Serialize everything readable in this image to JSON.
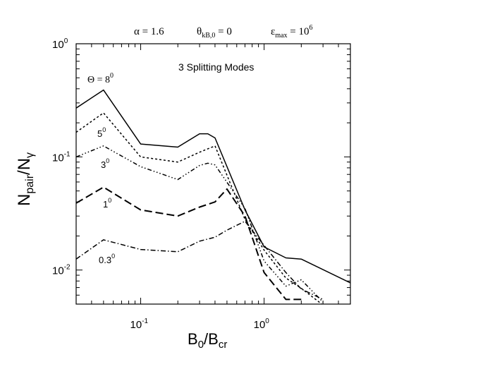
{
  "chart_data": {
    "type": "line",
    "title_parts": [
      {
        "text": "α = 1.6"
      },
      {
        "base": "θ",
        "sub": "kB,0",
        "rest": " = 0"
      },
      {
        "base": "ε",
        "sub": "max",
        "rest": " = 10",
        "sup": "6"
      }
    ],
    "annotation": "3 Splitting Modes",
    "xlabel": {
      "base": "B",
      "sub1": "0",
      "mid": "/B",
      "sub2": "cr"
    },
    "ylabel": {
      "base": "N",
      "sub1": "pair",
      "mid": "/N",
      "sub2": "γ"
    },
    "x_scale": "log",
    "y_scale": "log",
    "xlim": [
      0.03,
      5
    ],
    "ylim": [
      0.005,
      1
    ],
    "x_ticks": [
      {
        "base": "10",
        "exp": "-1",
        "value": 0.1
      },
      {
        "base": "10",
        "exp": "0",
        "value": 1
      }
    ],
    "y_ticks": [
      {
        "base": "10",
        "exp": "0",
        "value": 1
      },
      {
        "base": "10",
        "exp": "-1",
        "value": 0.1
      },
      {
        "base": "10",
        "exp": "-2",
        "value": 0.01
      }
    ],
    "grid": false,
    "series": [
      {
        "name": "8",
        "label_prefix": "Θ = ",
        "label_sup": "0",
        "dash": "",
        "x": [
          0.03,
          0.05,
          0.1,
          0.2,
          0.3,
          0.35,
          0.4,
          0.7,
          1.0,
          1.5,
          2.0,
          5.0
        ],
        "y": [
          0.27,
          0.39,
          0.13,
          0.122,
          0.16,
          0.16,
          0.147,
          0.034,
          0.016,
          0.0128,
          0.0125,
          0.0077
        ]
      },
      {
        "name": "5",
        "label_prefix": "",
        "label_sup": "0",
        "dash": "3,3",
        "x": [
          0.03,
          0.05,
          0.1,
          0.2,
          0.3,
          0.4,
          0.7,
          1.0,
          1.5,
          2.0,
          3.0
        ],
        "y": [
          0.165,
          0.245,
          0.1,
          0.09,
          0.11,
          0.125,
          0.028,
          0.015,
          0.0085,
          0.0069,
          0.0049
        ]
      },
      {
        "name": "3",
        "label_prefix": "",
        "label_sup": "0",
        "dash": "6,3,1.5,3,1.5,3,1.5,3",
        "x": [
          0.03,
          0.05,
          0.1,
          0.2,
          0.3,
          0.35,
          0.4,
          0.7,
          1.0,
          1.5,
          2.0,
          3.0
        ],
        "y": [
          0.1,
          0.125,
          0.082,
          0.063,
          0.084,
          0.088,
          0.085,
          0.035,
          0.012,
          0.0072,
          0.0082,
          0.0052
        ]
      },
      {
        "name": "1",
        "label_prefix": "",
        "label_sup": "0",
        "dash": "11,5",
        "x": [
          0.03,
          0.05,
          0.1,
          0.2,
          0.3,
          0.4,
          0.5,
          0.7,
          1.0,
          1.5,
          2.0
        ],
        "y": [
          0.039,
          0.054,
          0.034,
          0.03,
          0.036,
          0.04,
          0.052,
          0.03,
          0.0095,
          0.0055,
          0.0055
        ]
      },
      {
        "name": "0.3",
        "label_prefix": "",
        "label_sup": "0",
        "dash": "7,3,1.5,3",
        "x": [
          0.03,
          0.05,
          0.1,
          0.2,
          0.3,
          0.4,
          0.5,
          0.7,
          1.0,
          1.5,
          2.0,
          3.0
        ],
        "y": [
          0.0125,
          0.0185,
          0.0152,
          0.0145,
          0.018,
          0.0195,
          0.0225,
          0.027,
          0.0165,
          0.0095,
          0.0068,
          0.0055
        ]
      }
    ]
  }
}
